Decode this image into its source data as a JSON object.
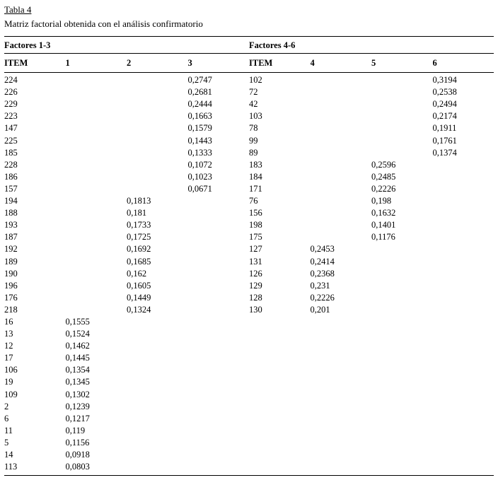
{
  "page": {
    "title": "Tabla 4",
    "subtitle": "Matriz factorial obtenida con el análisis confirmatorio"
  },
  "table": {
    "group_headers": [
      "Factores 1-3",
      "Factores 4-6"
    ],
    "columns": [
      "ITEM",
      "1",
      "2",
      "3",
      "ITEM",
      "4",
      "5",
      "6"
    ],
    "rows": [
      [
        "224",
        "",
        "",
        "0,2747",
        "102",
        "",
        "",
        "0,3194"
      ],
      [
        "226",
        "",
        "",
        "0,2681",
        "72",
        "",
        "",
        "0,2538"
      ],
      [
        "229",
        "",
        "",
        "0,2444",
        "42",
        "",
        "",
        "0,2494"
      ],
      [
        "223",
        "",
        "",
        "0,1663",
        "103",
        "",
        "",
        "0,2174"
      ],
      [
        "147",
        "",
        "",
        "0,1579",
        "78",
        "",
        "",
        "0,1911"
      ],
      [
        "225",
        "",
        "",
        "0,1443",
        "99",
        "",
        "",
        "0,1761"
      ],
      [
        "185",
        "",
        "",
        "0,1333",
        "89",
        "",
        "",
        "0,1374"
      ],
      [
        "228",
        "",
        "",
        "0,1072",
        "183",
        "",
        "0,2596",
        ""
      ],
      [
        "186",
        "",
        "",
        "0,1023",
        "184",
        "",
        "0,2485",
        ""
      ],
      [
        "157",
        "",
        "",
        "0,0671",
        "171",
        "",
        "0,2226",
        ""
      ],
      [
        "194",
        "",
        "0,1813",
        "",
        "76",
        "",
        "0,198",
        ""
      ],
      [
        "188",
        "",
        "0,181",
        "",
        "156",
        "",
        "0,1632",
        ""
      ],
      [
        "193",
        "",
        "0,1733",
        "",
        "198",
        "",
        "0,1401",
        ""
      ],
      [
        "187",
        "",
        "0,1725",
        "",
        "175",
        "",
        "0,1176",
        ""
      ],
      [
        "192",
        "",
        "0,1692",
        "",
        "127",
        "0,2453",
        "",
        ""
      ],
      [
        "189",
        "",
        "0,1685",
        "",
        "131",
        "0,2414",
        "",
        ""
      ],
      [
        "190",
        "",
        "0,162",
        "",
        "126",
        "0,2368",
        "",
        ""
      ],
      [
        "196",
        "",
        "0,1605",
        "",
        "129",
        "0,231",
        "",
        ""
      ],
      [
        "176",
        "",
        "0,1449",
        "",
        "128",
        "0,2226",
        "",
        ""
      ],
      [
        "218",
        "",
        "0,1324",
        "",
        "130",
        "0,201",
        "",
        ""
      ],
      [
        "16",
        "0,1555",
        "",
        "",
        "",
        "",
        "",
        ""
      ],
      [
        "13",
        "0,1524",
        "",
        "",
        "",
        "",
        "",
        ""
      ],
      [
        "12",
        "0,1462",
        "",
        "",
        "",
        "",
        "",
        ""
      ],
      [
        "17",
        "0,1445",
        "",
        "",
        "",
        "",
        "",
        ""
      ],
      [
        "106",
        "0,1354",
        "",
        "",
        "",
        "",
        "",
        ""
      ],
      [
        "19",
        "0,1345",
        "",
        "",
        "",
        "",
        "",
        ""
      ],
      [
        "109",
        "0,1302",
        "",
        "",
        "",
        "",
        "",
        ""
      ],
      [
        "2",
        "0,1239",
        "",
        "",
        "",
        "",
        "",
        ""
      ],
      [
        "6",
        "0,1217",
        "",
        "",
        "",
        "",
        "",
        ""
      ],
      [
        "11",
        "0,119",
        "",
        "",
        "",
        "",
        "",
        ""
      ],
      [
        "5",
        "0,1156",
        "",
        "",
        "",
        "",
        "",
        ""
      ],
      [
        "14",
        "0,0918",
        "",
        "",
        "",
        "",
        "",
        ""
      ],
      [
        "113",
        "0,0803",
        "",
        "",
        "",
        "",
        "",
        ""
      ]
    ]
  }
}
